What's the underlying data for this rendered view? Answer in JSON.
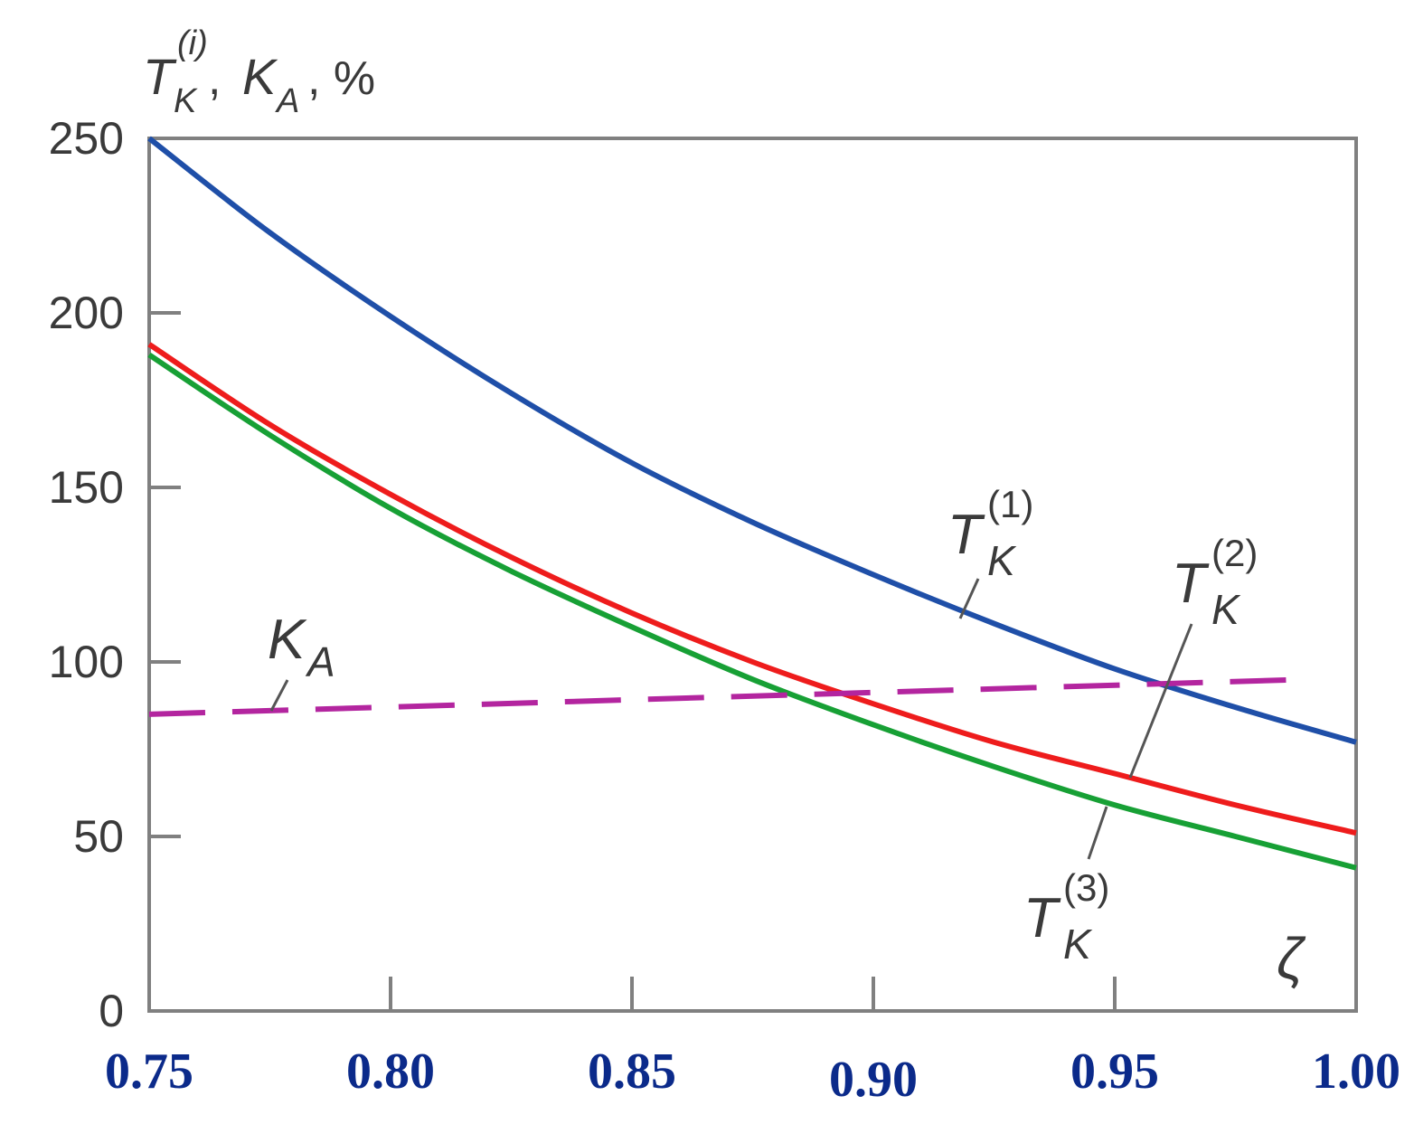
{
  "chart_data": {
    "type": "line",
    "title": "",
    "ylabel": {
      "main": "T",
      "sub": "K",
      "sup": "(i)",
      "rest_sep": ", ",
      "main2": "K",
      "sub2": "A",
      "unit": ", %"
    },
    "xlabel": "ζ",
    "xlim": [
      0.75,
      1.0
    ],
    "ylim": [
      0,
      250
    ],
    "xticks": [
      0.75,
      0.8,
      0.85,
      0.9,
      0.95,
      1.0
    ],
    "xtick_labels": [
      "0.75",
      "0.80",
      "0.85",
      "0.90",
      "0.95",
      "1.00"
    ],
    "yticks": [
      0,
      50,
      100,
      150,
      200,
      250
    ],
    "ytick_labels": [
      "0",
      "50",
      "100",
      "150",
      "200",
      "250"
    ],
    "grid": false,
    "series": [
      {
        "name_main": "T",
        "name_sub": "K",
        "name_sup": "(1)",
        "color": "#1f4fa8",
        "dash": false,
        "x": [
          0.75,
          0.775,
          0.8,
          0.825,
          0.85,
          0.875,
          0.9,
          0.925,
          0.95,
          0.975,
          1.0
        ],
        "y": [
          250,
          223,
          199,
          177,
          157,
          140,
          125,
          111,
          98,
          87,
          77
        ]
      },
      {
        "name_main": "T",
        "name_sub": "K",
        "name_sup": "(2)",
        "color": "#ee1c1c",
        "dash": false,
        "x": [
          0.75,
          0.775,
          0.8,
          0.825,
          0.85,
          0.875,
          0.9,
          0.925,
          0.95,
          0.975,
          1.0
        ],
        "y": [
          191,
          168,
          148,
          130,
          114,
          100,
          88,
          77,
          68,
          59,
          51
        ]
      },
      {
        "name_main": "T",
        "name_sub": "K",
        "name_sup": "(3)",
        "color": "#17a035",
        "dash": false,
        "x": [
          0.75,
          0.775,
          0.8,
          0.825,
          0.85,
          0.875,
          0.9,
          0.925,
          0.95,
          0.975,
          1.0
        ],
        "y": [
          188,
          165,
          144,
          126,
          110,
          95,
          82,
          70,
          59,
          50,
          41
        ]
      },
      {
        "name_main": "K",
        "name_sub": "A",
        "name_sup": "",
        "color": "#b3259f",
        "dash": true,
        "x": [
          0.75,
          0.99
        ],
        "y": [
          85,
          95
        ]
      }
    ]
  }
}
